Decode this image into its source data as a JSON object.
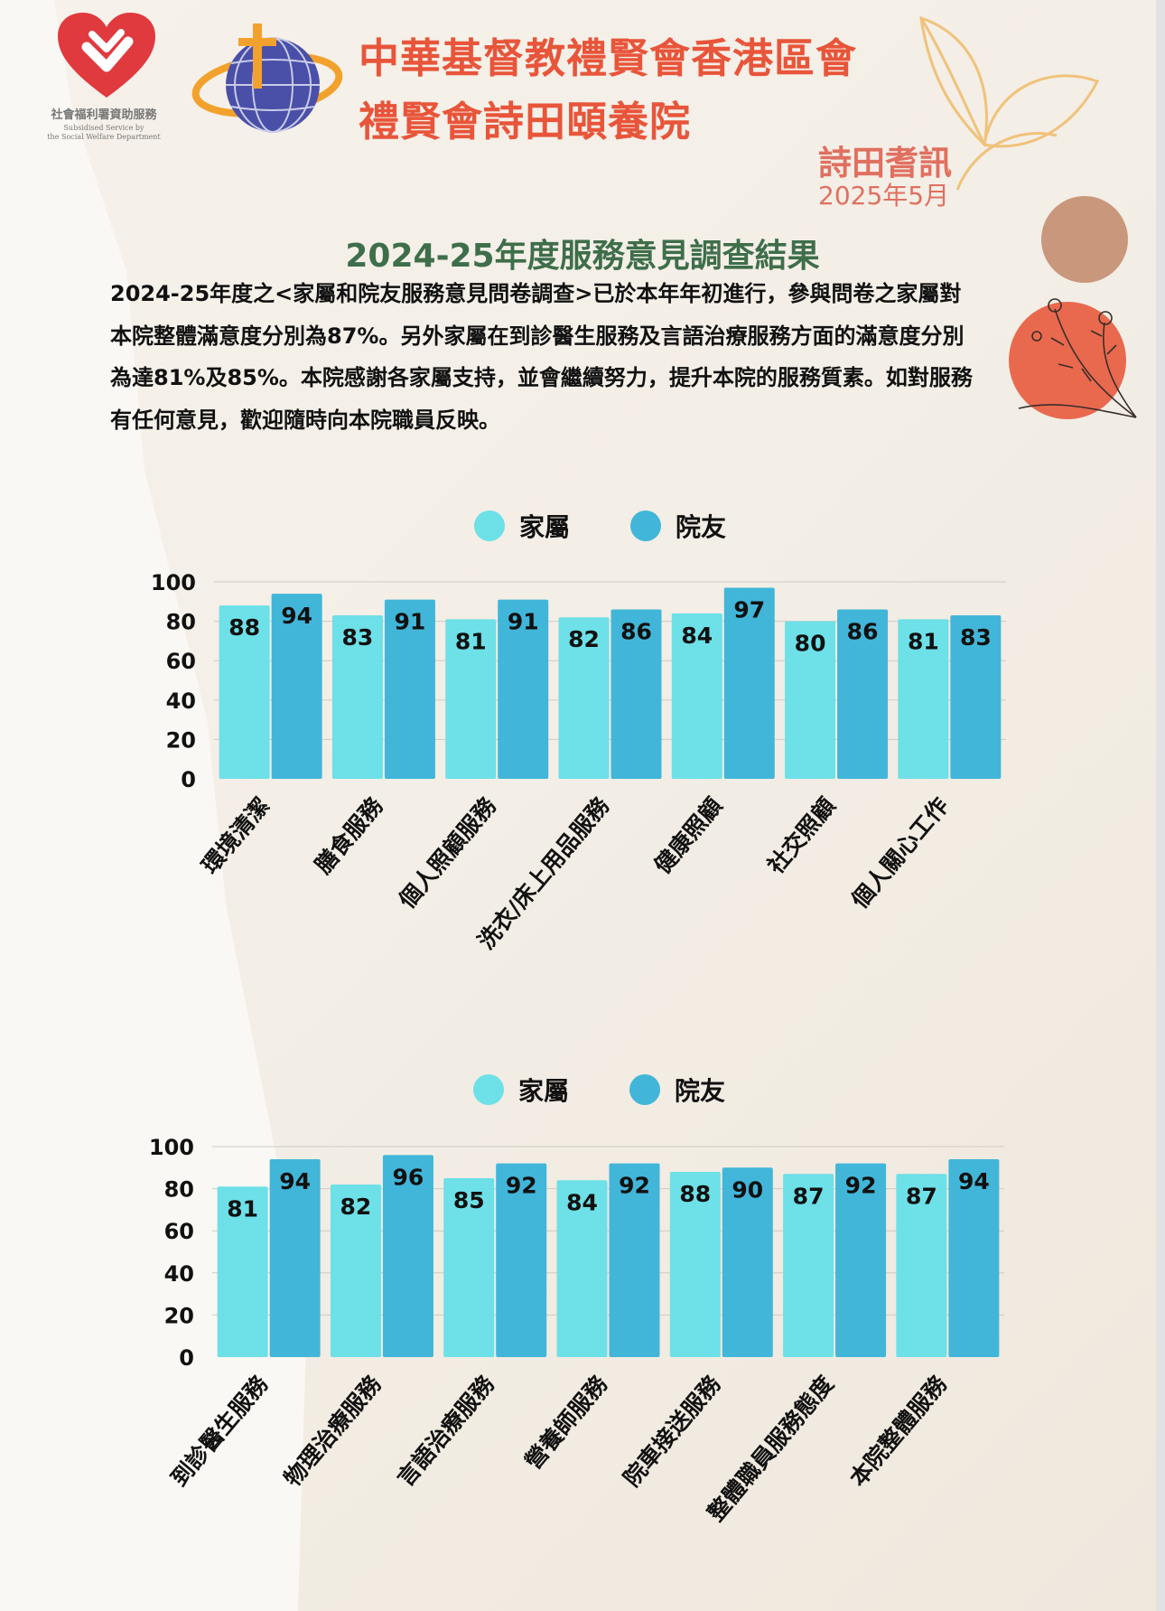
{
  "header": {
    "swd_cn": "社會福利署資助服務",
    "swd_en_line1": "Subsidised Service by",
    "swd_en_line2": "the Social Welfare Department",
    "org_name": "中華基督教禮賢會香港區會",
    "home_name": "禮賢會詩田頤養院",
    "newsletter": "詩田耆訊",
    "issue_date": "2025年5月"
  },
  "report": {
    "title": "2024-25年度服務意見調查結果",
    "intro": "2024-25年度之<家屬和院友服務意見問卷調查>已於本年年初進行，參與問卷之家屬對本院整體滿意度分別為87%。另外家屬在到診醫生服務及言語治療服務方面的滿意度分別為達81%及85%。本院感謝各家屬支持，並會繼續努力，提升本院的服務質素。如對服務有任何意見，歡迎隨時向本院職員反映。"
  },
  "legend": {
    "series_a": "家屬",
    "series_b": "院友"
  },
  "colors": {
    "family": "#6de0e8",
    "resident": "#41b6d9",
    "title_green": "#3e6e4a",
    "accent_red": "#e8553a",
    "logo_red": "#e03a3e"
  },
  "chart_data": [
    {
      "type": "bar",
      "categories": [
        "環境清潔",
        "膳食服務",
        "個人照顧服務",
        "洗衣/床上用品服務",
        "健康照顧",
        "社交照顧",
        "個人關心工作"
      ],
      "series": [
        {
          "name": "家屬",
          "values": [
            88,
            83,
            81,
            82,
            84,
            80,
            81
          ]
        },
        {
          "name": "院友",
          "values": [
            94,
            91,
            91,
            86,
            97,
            86,
            83
          ]
        }
      ],
      "ylim": [
        0,
        100
      ],
      "yticks": [
        0,
        20,
        40,
        60,
        80,
        100
      ],
      "grid": true,
      "legend": "top-center"
    },
    {
      "type": "bar",
      "categories": [
        "到診醫生服務",
        "物理治療服務",
        "言語治療服務",
        "營養師服務",
        "院車接送服務",
        "整體職員服務態度",
        "本院整體服務"
      ],
      "series": [
        {
          "name": "家屬",
          "values": [
            81,
            82,
            85,
            84,
            88,
            87,
            87
          ]
        },
        {
          "name": "院友",
          "values": [
            94,
            96,
            92,
            92,
            90,
            92,
            94
          ]
        }
      ],
      "ylim": [
        0,
        100
      ],
      "yticks": [
        0,
        20,
        40,
        60,
        80,
        100
      ],
      "grid": true,
      "legend": "top-center"
    }
  ]
}
